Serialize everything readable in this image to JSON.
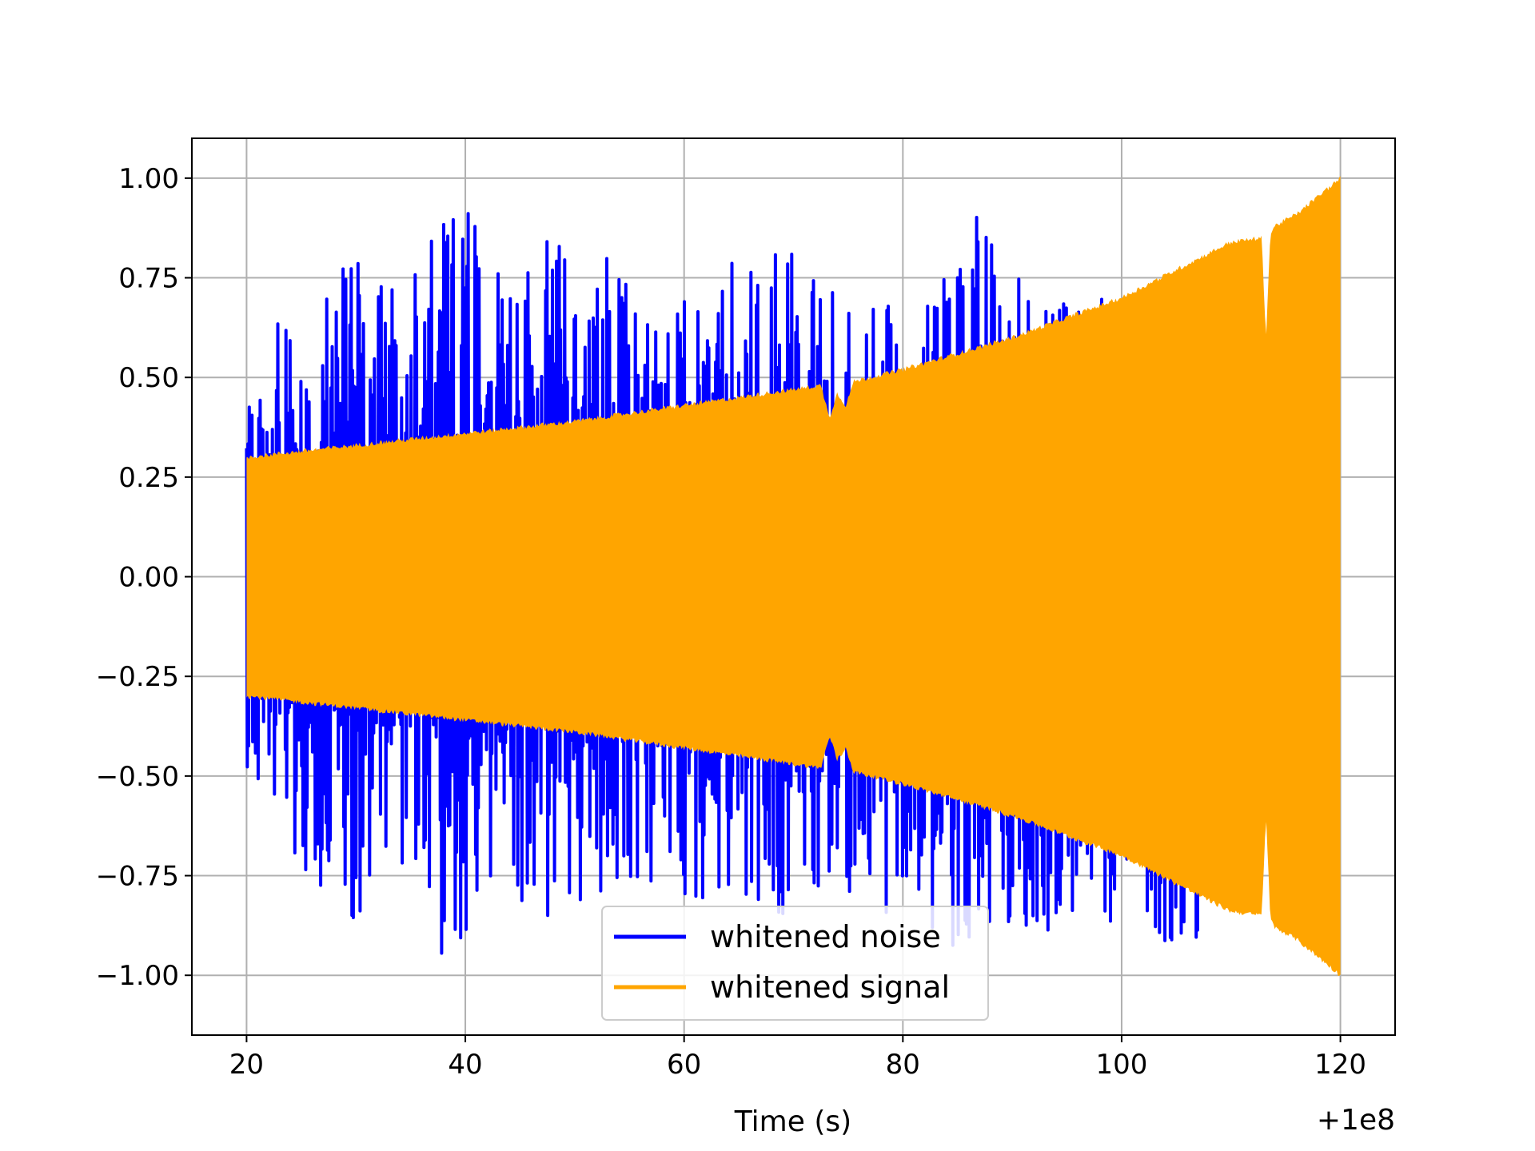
{
  "chart_data": {
    "type": "line",
    "title": "",
    "xlabel": "Time (s)",
    "ylabel": "",
    "x_offset_label": "+1e8",
    "xlim": [
      15,
      125
    ],
    "ylim": [
      -1.15,
      1.1
    ],
    "x_ticks": [
      20,
      40,
      60,
      80,
      100,
      120
    ],
    "x_tick_labels": [
      "20",
      "40",
      "60",
      "80",
      "100",
      "120"
    ],
    "y_ticks": [
      1.0,
      0.75,
      0.5,
      0.25,
      0.0,
      -0.25,
      -0.5,
      -0.75,
      -1.0
    ],
    "y_tick_labels": [
      "1.00",
      "0.75",
      "0.50",
      "0.25",
      "0.00",
      "−0.25",
      "−0.50",
      "−0.75",
      "−1.00"
    ],
    "grid": true,
    "legend_position": "lower-center",
    "series": [
      {
        "name": "whitened noise",
        "color": "#0000ff",
        "x_range": [
          20,
          107
        ],
        "approx_upper_envelope": [
          0.55,
          0.7,
          0.8,
          0.75,
          0.94,
          0.88,
          0.83,
          0.8,
          0.66,
          0.78,
          0.85,
          0.75,
          0.69,
          0.7,
          0.95,
          0.68,
          0.7,
          0.76,
          0.72
        ],
        "approx_lower_envelope": [
          -0.5,
          -0.75,
          -0.88,
          -0.8,
          -1.03,
          -0.82,
          -0.92,
          -0.8,
          -0.85,
          -0.78,
          -0.86,
          -0.8,
          -0.85,
          -0.94,
          -0.92,
          -0.9,
          -0.85,
          -0.95,
          -0.97
        ]
      },
      {
        "name": "whitened signal",
        "color": "#ffa500",
        "x_range": [
          20,
          120
        ],
        "envelope_x": [
          20,
          30,
          40,
          50,
          60,
          70,
          72.5,
          73.3,
          74,
          74.8,
          75.5,
          80,
          90,
          100,
          110,
          112.8,
          113.2,
          113.6,
          114,
          116,
          120
        ],
        "envelope_amplitude": [
          0.3,
          0.33,
          0.36,
          0.39,
          0.43,
          0.47,
          0.48,
          0.4,
          0.46,
          0.43,
          0.49,
          0.52,
          0.6,
          0.7,
          0.84,
          0.85,
          0.6,
          0.86,
          0.88,
          0.91,
          1.0
        ]
      }
    ]
  }
}
